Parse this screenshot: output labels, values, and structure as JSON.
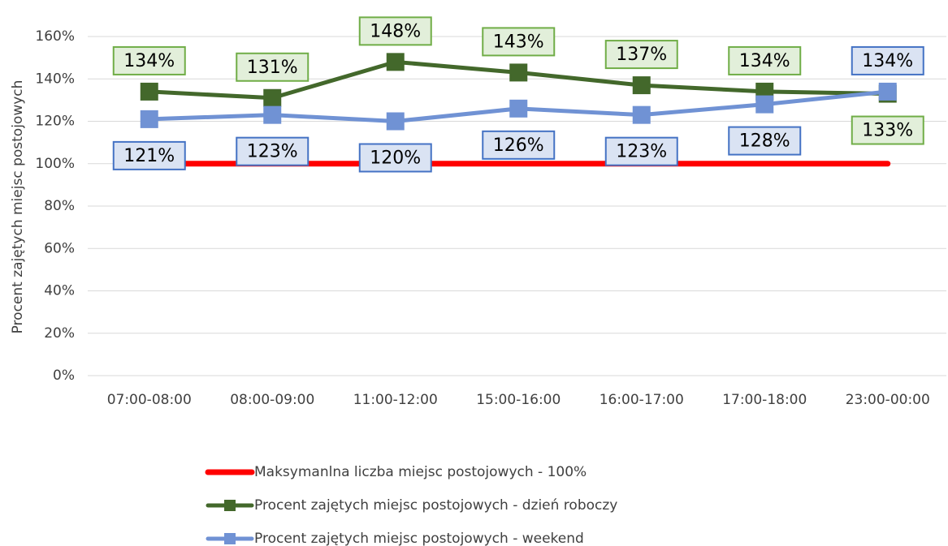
{
  "chart_data": {
    "type": "line",
    "categories": [
      "07:00-08:00",
      "08:00-09:00",
      "11:00-12:00",
      "15:00-16:00",
      "16:00-17:00",
      "17:00-18:00",
      "23:00-00:00"
    ],
    "ylabel": "Procent zajętych miejsc postojowych",
    "ylim": [
      0,
      160
    ],
    "yticks": [
      {
        "value": 0,
        "label": "0%"
      },
      {
        "value": 20,
        "label": "20%"
      },
      {
        "value": 40,
        "label": "40%"
      },
      {
        "value": 60,
        "label": "60%"
      },
      {
        "value": 80,
        "label": "80%"
      },
      {
        "value": 100,
        "label": "100%"
      },
      {
        "value": 120,
        "label": "120%"
      },
      {
        "value": 140,
        "label": "140%"
      },
      {
        "value": 160,
        "label": "160%"
      }
    ],
    "grid": true,
    "legend": "bottom",
    "series": [
      {
        "name": "Maksymanlna liczba miejsc postojowych - 100%",
        "color": "#ff0000",
        "values": [
          100,
          100,
          100,
          100,
          100,
          100,
          100
        ]
      },
      {
        "name": "Procent zajętych miejsc postojowych - dzień roboczy",
        "color": "#43682b",
        "values": [
          134,
          131,
          148,
          143,
          137,
          134,
          133
        ],
        "value_labels": [
          "134%",
          "131%",
          "148%",
          "143%",
          "137%",
          "134%",
          "133%"
        ],
        "marker": "square"
      },
      {
        "name": "Procent zajętych miejsc postojowych - weekend",
        "color": "#7092d4",
        "values": [
          121,
          123,
          120,
          126,
          123,
          128,
          134
        ],
        "value_labels": [
          "121%",
          "123%",
          "120%",
          "126%",
          "123%",
          "128%",
          "134%"
        ],
        "marker": "square"
      }
    ]
  }
}
